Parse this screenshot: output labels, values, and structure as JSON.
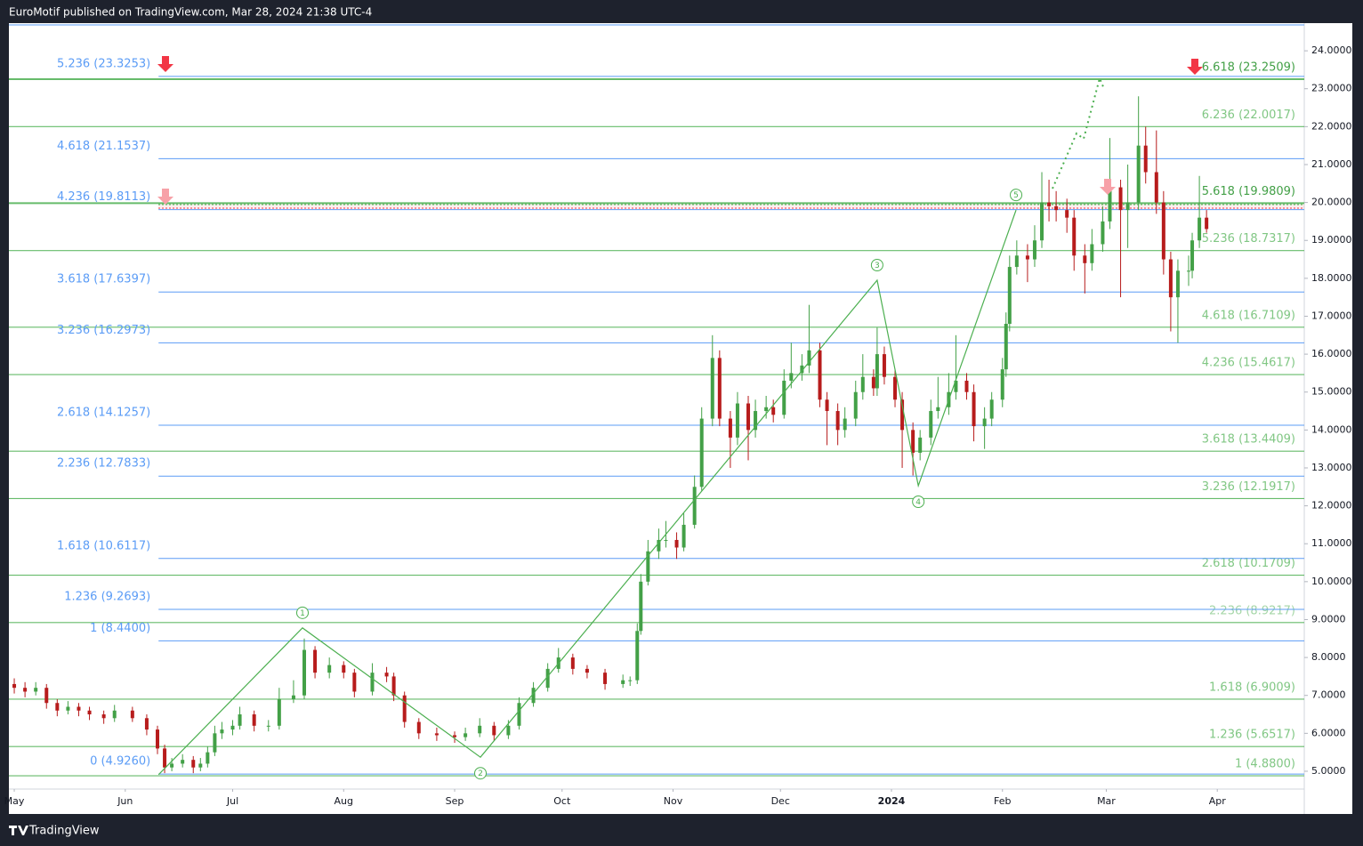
{
  "header": {
    "text": "EuroMotif published on TradingView.com, Mar 28, 2024 21:38 UTC-4"
  },
  "footer": {
    "brand": "TradingView"
  },
  "chart_data": {
    "type": "candlestick",
    "up_color": "#43a047",
    "down_color": "#b71c1c",
    "xlim": [
      -1.5,
      360.3
    ],
    "xticks": [
      {
        "value": 0,
        "label": "May"
      },
      {
        "value": 31,
        "label": "Jun"
      },
      {
        "value": 61,
        "label": "Jul"
      },
      {
        "value": 92,
        "label": "Aug"
      },
      {
        "value": 123,
        "label": "Sep"
      },
      {
        "value": 153,
        "label": "Oct"
      },
      {
        "value": 184,
        "label": "Nov"
      },
      {
        "value": 214,
        "label": "Dec"
      },
      {
        "value": 245,
        "label": "2024"
      },
      {
        "value": 276,
        "label": "Feb"
      },
      {
        "value": 305,
        "label": "Mar"
      },
      {
        "value": 336,
        "label": "Apr"
      }
    ],
    "ylim": [
      4.53,
      24.73
    ],
    "yticks": [
      {
        "value": 5,
        "label": "5.0000"
      },
      {
        "value": 6,
        "label": "6.0000"
      },
      {
        "value": 7,
        "label": "7.0000"
      },
      {
        "value": 8,
        "label": "8.0000"
      },
      {
        "value": 9,
        "label": "9.0000"
      },
      {
        "value": 10,
        "label": "10.0000"
      },
      {
        "value": 11,
        "label": "11.0000"
      },
      {
        "value": 12,
        "label": "12.0000"
      },
      {
        "value": 13,
        "label": "13.0000"
      },
      {
        "value": 14,
        "label": "14.0000"
      },
      {
        "value": 15,
        "label": "15.0000"
      },
      {
        "value": 16,
        "label": "16.0000"
      },
      {
        "value": 17,
        "label": "17.0000"
      },
      {
        "value": 18,
        "label": "18.0000"
      },
      {
        "value": 19,
        "label": "19.0000"
      },
      {
        "value": 20,
        "label": "20.0000"
      },
      {
        "value": 21,
        "label": "21.0000"
      },
      {
        "value": 22,
        "label": "22.0000"
      },
      {
        "value": 23,
        "label": "23.0000"
      },
      {
        "value": 24,
        "label": "24.0000"
      }
    ],
    "x": [
      0,
      3,
      6,
      9,
      12,
      15,
      18,
      21,
      25,
      28,
      33,
      37,
      40,
      42,
      44,
      47,
      50,
      52,
      54,
      56,
      58,
      61,
      63,
      67,
      71,
      74,
      78,
      81,
      84,
      88,
      92,
      95,
      100,
      104,
      106,
      109,
      113,
      118,
      123,
      126,
      130,
      134,
      138,
      141,
      145,
      149,
      152,
      156,
      160,
      165,
      170,
      172,
      174,
      175,
      177,
      180,
      182,
      185,
      187,
      190,
      192,
      195,
      197,
      200,
      202,
      205,
      207,
      210,
      212,
      215,
      217,
      220,
      222,
      225,
      227,
      230,
      232,
      235,
      237,
      240,
      241,
      243,
      246,
      248,
      251,
      253,
      256,
      258,
      261,
      263,
      266,
      268,
      271,
      273,
      276,
      277,
      278,
      280,
      283,
      285,
      287,
      289,
      291,
      294,
      296,
      299,
      301,
      304,
      306,
      309,
      311,
      314,
      316,
      319,
      321,
      323,
      325,
      328,
      329,
      331,
      333
    ],
    "ohlc": [
      [
        7.3,
        7.45,
        7.05,
        7.2
      ],
      [
        7.2,
        7.35,
        6.95,
        7.1
      ],
      [
        7.1,
        7.35,
        7.0,
        7.2
      ],
      [
        7.2,
        7.3,
        6.65,
        6.8
      ],
      [
        6.8,
        6.9,
        6.45,
        6.6
      ],
      [
        6.6,
        6.85,
        6.5,
        6.7
      ],
      [
        6.7,
        6.8,
        6.45,
        6.6
      ],
      [
        6.6,
        6.7,
        6.35,
        6.5
      ],
      [
        6.5,
        6.6,
        6.25,
        6.4
      ],
      [
        6.4,
        6.75,
        6.3,
        6.6
      ],
      [
        6.6,
        6.7,
        6.3,
        6.4
      ],
      [
        6.4,
        6.5,
        5.95,
        6.1
      ],
      [
        6.1,
        6.2,
        5.45,
        5.6
      ],
      [
        5.6,
        5.7,
        4.95,
        5.1
      ],
      [
        5.1,
        5.35,
        5.0,
        5.2
      ],
      [
        5.2,
        5.45,
        5.1,
        5.3
      ],
      [
        5.3,
        5.4,
        4.95,
        5.1
      ],
      [
        5.1,
        5.35,
        5.0,
        5.2
      ],
      [
        5.2,
        5.65,
        5.1,
        5.5
      ],
      [
        5.5,
        6.2,
        5.4,
        6.0
      ],
      [
        6.0,
        6.3,
        5.85,
        6.1
      ],
      [
        6.1,
        6.35,
        5.95,
        6.2
      ],
      [
        6.2,
        6.7,
        6.1,
        6.5
      ],
      [
        6.5,
        6.6,
        6.05,
        6.2
      ],
      [
        6.2,
        6.35,
        6.05,
        6.2
      ],
      [
        6.2,
        7.2,
        6.1,
        6.9
      ],
      [
        6.9,
        7.4,
        6.8,
        7.0
      ],
      [
        7.0,
        8.5,
        6.9,
        8.2
      ],
      [
        8.2,
        8.3,
        7.45,
        7.6
      ],
      [
        7.6,
        8.0,
        7.45,
        7.8
      ],
      [
        7.8,
        7.9,
        7.45,
        7.6
      ],
      [
        7.6,
        7.7,
        6.95,
        7.1
      ],
      [
        7.1,
        7.85,
        7.0,
        7.6
      ],
      [
        7.6,
        7.75,
        7.35,
        7.5
      ],
      [
        7.5,
        7.6,
        6.85,
        7.0
      ],
      [
        7.0,
        7.1,
        6.15,
        6.3
      ],
      [
        6.3,
        6.4,
        5.85,
        6.0
      ],
      [
        6.0,
        6.15,
        5.8,
        5.95
      ],
      [
        5.95,
        6.05,
        5.75,
        5.9
      ],
      [
        5.9,
        6.15,
        5.8,
        6.0
      ],
      [
        6.0,
        6.4,
        5.9,
        6.2
      ],
      [
        6.2,
        6.3,
        5.8,
        5.95
      ],
      [
        5.95,
        6.35,
        5.85,
        6.2
      ],
      [
        6.2,
        6.95,
        6.1,
        6.8
      ],
      [
        6.8,
        7.35,
        6.7,
        7.2
      ],
      [
        7.2,
        7.85,
        7.1,
        7.7
      ],
      [
        7.7,
        8.25,
        7.6,
        8.0
      ],
      [
        8.0,
        8.1,
        7.55,
        7.7
      ],
      [
        7.7,
        7.8,
        7.45,
        7.6
      ],
      [
        7.6,
        7.7,
        7.15,
        7.3
      ],
      [
        7.3,
        7.55,
        7.2,
        7.4
      ],
      [
        7.4,
        7.5,
        7.25,
        7.4
      ],
      [
        7.4,
        8.9,
        7.3,
        8.7
      ],
      [
        8.7,
        10.2,
        8.6,
        10.0
      ],
      [
        10.0,
        11.1,
        9.9,
        10.8
      ],
      [
        10.8,
        11.4,
        10.6,
        11.1
      ],
      [
        11.1,
        11.6,
        10.9,
        11.1
      ],
      [
        11.1,
        11.3,
        10.6,
        10.9
      ],
      [
        10.9,
        11.8,
        10.8,
        11.5
      ],
      [
        11.5,
        12.8,
        11.4,
        12.5
      ],
      [
        12.5,
        14.6,
        12.4,
        14.3
      ],
      [
        14.3,
        16.5,
        14.1,
        15.9
      ],
      [
        15.9,
        16.1,
        14.1,
        14.3
      ],
      [
        14.3,
        14.5,
        13.0,
        13.8
      ],
      [
        13.8,
        15.0,
        13.6,
        14.7
      ],
      [
        14.7,
        14.9,
        13.2,
        14.0
      ],
      [
        14.0,
        14.8,
        13.8,
        14.5
      ],
      [
        14.5,
        14.9,
        14.3,
        14.6
      ],
      [
        14.6,
        14.8,
        14.2,
        14.4
      ],
      [
        14.4,
        15.6,
        14.3,
        15.3
      ],
      [
        15.3,
        16.3,
        15.1,
        15.5
      ],
      [
        15.5,
        16.0,
        15.3,
        15.7
      ],
      [
        15.7,
        17.3,
        15.5,
        16.1
      ],
      [
        16.1,
        16.3,
        14.6,
        14.8
      ],
      [
        14.8,
        15.0,
        13.6,
        14.5
      ],
      [
        14.5,
        14.7,
        13.6,
        14.0
      ],
      [
        14.0,
        14.6,
        13.8,
        14.3
      ],
      [
        14.3,
        15.3,
        14.1,
        15.0
      ],
      [
        15.0,
        16.0,
        14.8,
        15.4
      ],
      [
        15.4,
        15.6,
        14.9,
        15.1
      ],
      [
        15.1,
        16.7,
        14.9,
        16.0
      ],
      [
        16.0,
        16.2,
        15.2,
        15.4
      ],
      [
        15.4,
        15.6,
        14.6,
        14.8
      ],
      [
        14.8,
        15.0,
        13.0,
        14.0
      ],
      [
        14.0,
        14.2,
        12.8,
        13.4
      ],
      [
        13.4,
        14.0,
        13.2,
        13.8
      ],
      [
        13.8,
        14.8,
        13.6,
        14.5
      ],
      [
        14.5,
        15.4,
        14.3,
        14.6
      ],
      [
        14.6,
        15.5,
        14.4,
        15.0
      ],
      [
        15.0,
        16.5,
        14.8,
        15.3
      ],
      [
        15.3,
        15.5,
        14.8,
        15.0
      ],
      [
        15.0,
        15.2,
        13.7,
        14.1
      ],
      [
        14.1,
        14.6,
        13.5,
        14.3
      ],
      [
        14.3,
        15.0,
        14.1,
        14.8
      ],
      [
        14.8,
        15.9,
        14.6,
        15.6
      ],
      [
        15.6,
        17.1,
        15.4,
        16.8
      ],
      [
        16.8,
        18.6,
        16.6,
        18.3
      ],
      [
        18.3,
        19.0,
        18.1,
        18.6
      ],
      [
        18.6,
        18.9,
        17.9,
        18.5
      ],
      [
        18.5,
        19.4,
        18.3,
        19.0
      ],
      [
        19.0,
        20.8,
        18.8,
        20.0
      ],
      [
        20.0,
        20.6,
        19.5,
        19.9
      ],
      [
        19.9,
        20.3,
        19.5,
        19.8
      ],
      [
        19.8,
        20.1,
        19.2,
        19.6
      ],
      [
        19.6,
        19.8,
        18.2,
        18.6
      ],
      [
        18.6,
        18.9,
        17.6,
        18.4
      ],
      [
        18.4,
        19.3,
        18.2,
        18.9
      ],
      [
        18.9,
        19.9,
        18.7,
        19.5
      ],
      [
        19.5,
        21.7,
        19.3,
        20.4
      ],
      [
        20.4,
        20.6,
        17.5,
        19.8
      ],
      [
        19.8,
        21.0,
        18.8,
        20.0
      ],
      [
        20.0,
        22.8,
        19.8,
        21.5
      ],
      [
        21.5,
        22.0,
        20.5,
        20.8
      ],
      [
        20.8,
        21.9,
        19.7,
        20.0
      ],
      [
        20.0,
        20.3,
        18.1,
        18.5
      ],
      [
        18.5,
        18.7,
        16.6,
        17.5
      ],
      [
        17.5,
        18.5,
        16.3,
        18.2
      ],
      [
        18.2,
        18.6,
        17.8,
        18.2
      ],
      [
        18.2,
        19.2,
        18.0,
        19.0
      ],
      [
        19.0,
        20.7,
        18.8,
        19.6
      ],
      [
        19.6,
        19.8,
        19.2,
        19.3
      ]
    ],
    "fib_left": {
      "color": "#5b9cf6",
      "levels": [
        {
          "value": 4.926,
          "label": "0 (4.9260)"
        },
        {
          "value": 8.44,
          "label": "1 (8.4400)"
        },
        {
          "value": 9.2693,
          "label": "1.236 (9.2693)"
        },
        {
          "value": 10.6117,
          "label": "1.618 (10.6117)"
        },
        {
          "value": 12.7833,
          "label": "2.236 (12.7833)"
        },
        {
          "value": 14.1257,
          "label": "2.618 (14.1257)"
        },
        {
          "value": 16.2973,
          "label": "3.236 (16.2973)"
        },
        {
          "value": 17.6397,
          "label": "3.618 (17.6397)"
        },
        {
          "value": 19.8113,
          "label": "4.236 (19.8113)"
        },
        {
          "value": 21.1537,
          "label": "4.618 (21.1537)"
        },
        {
          "value": 23.3253,
          "label": "5.236 (23.3253)"
        }
      ]
    },
    "fib_right": {
      "line_color": "#66bb6a",
      "levels": [
        {
          "value": 4.88,
          "label": "1 (4.8800)",
          "color": "#81c784"
        },
        {
          "value": 5.6517,
          "label": "1.236 (5.6517)",
          "color": "#81c784"
        },
        {
          "value": 6.9009,
          "label": "1.618 (6.9009)",
          "color": "#81c784"
        },
        {
          "value": 8.9217,
          "label": "2.236 (8.9217)",
          "color": "#a5d6a7"
        },
        {
          "value": 10.1709,
          "label": "2.618 (10.1709)",
          "color": "#81c784"
        },
        {
          "value": 12.1917,
          "label": "3.236 (12.1917)",
          "color": "#81c784"
        },
        {
          "value": 13.4409,
          "label": "3.618 (13.4409)",
          "color": "#81c784"
        },
        {
          "value": 15.4617,
          "label": "4.236 (15.4617)",
          "color": "#81c784"
        },
        {
          "value": 16.7109,
          "label": "4.618 (16.7109)",
          "color": "#81c784"
        },
        {
          "value": 18.7317,
          "label": "5.236 (18.7317)",
          "color": "#81c784"
        },
        {
          "value": 19.9809,
          "label": "5.618 (19.9809)",
          "color": "#43a047"
        },
        {
          "value": 22.0017,
          "label": "6.236 (22.0017)",
          "color": "#81c784"
        },
        {
          "value": 23.2509,
          "label": "6.618 (23.2509)",
          "color": "#43a047"
        }
      ]
    },
    "wave": {
      "color": "#4caf50",
      "x": [
        40.3,
        80.5,
        130.2,
        241,
        252.5,
        279.8
      ],
      "y": [
        4.91,
        8.78,
        5.37,
        17.95,
        12.53,
        19.8
      ],
      "labels": [
        null,
        "1",
        "2",
        "3",
        "4",
        "5"
      ]
    }
  }
}
